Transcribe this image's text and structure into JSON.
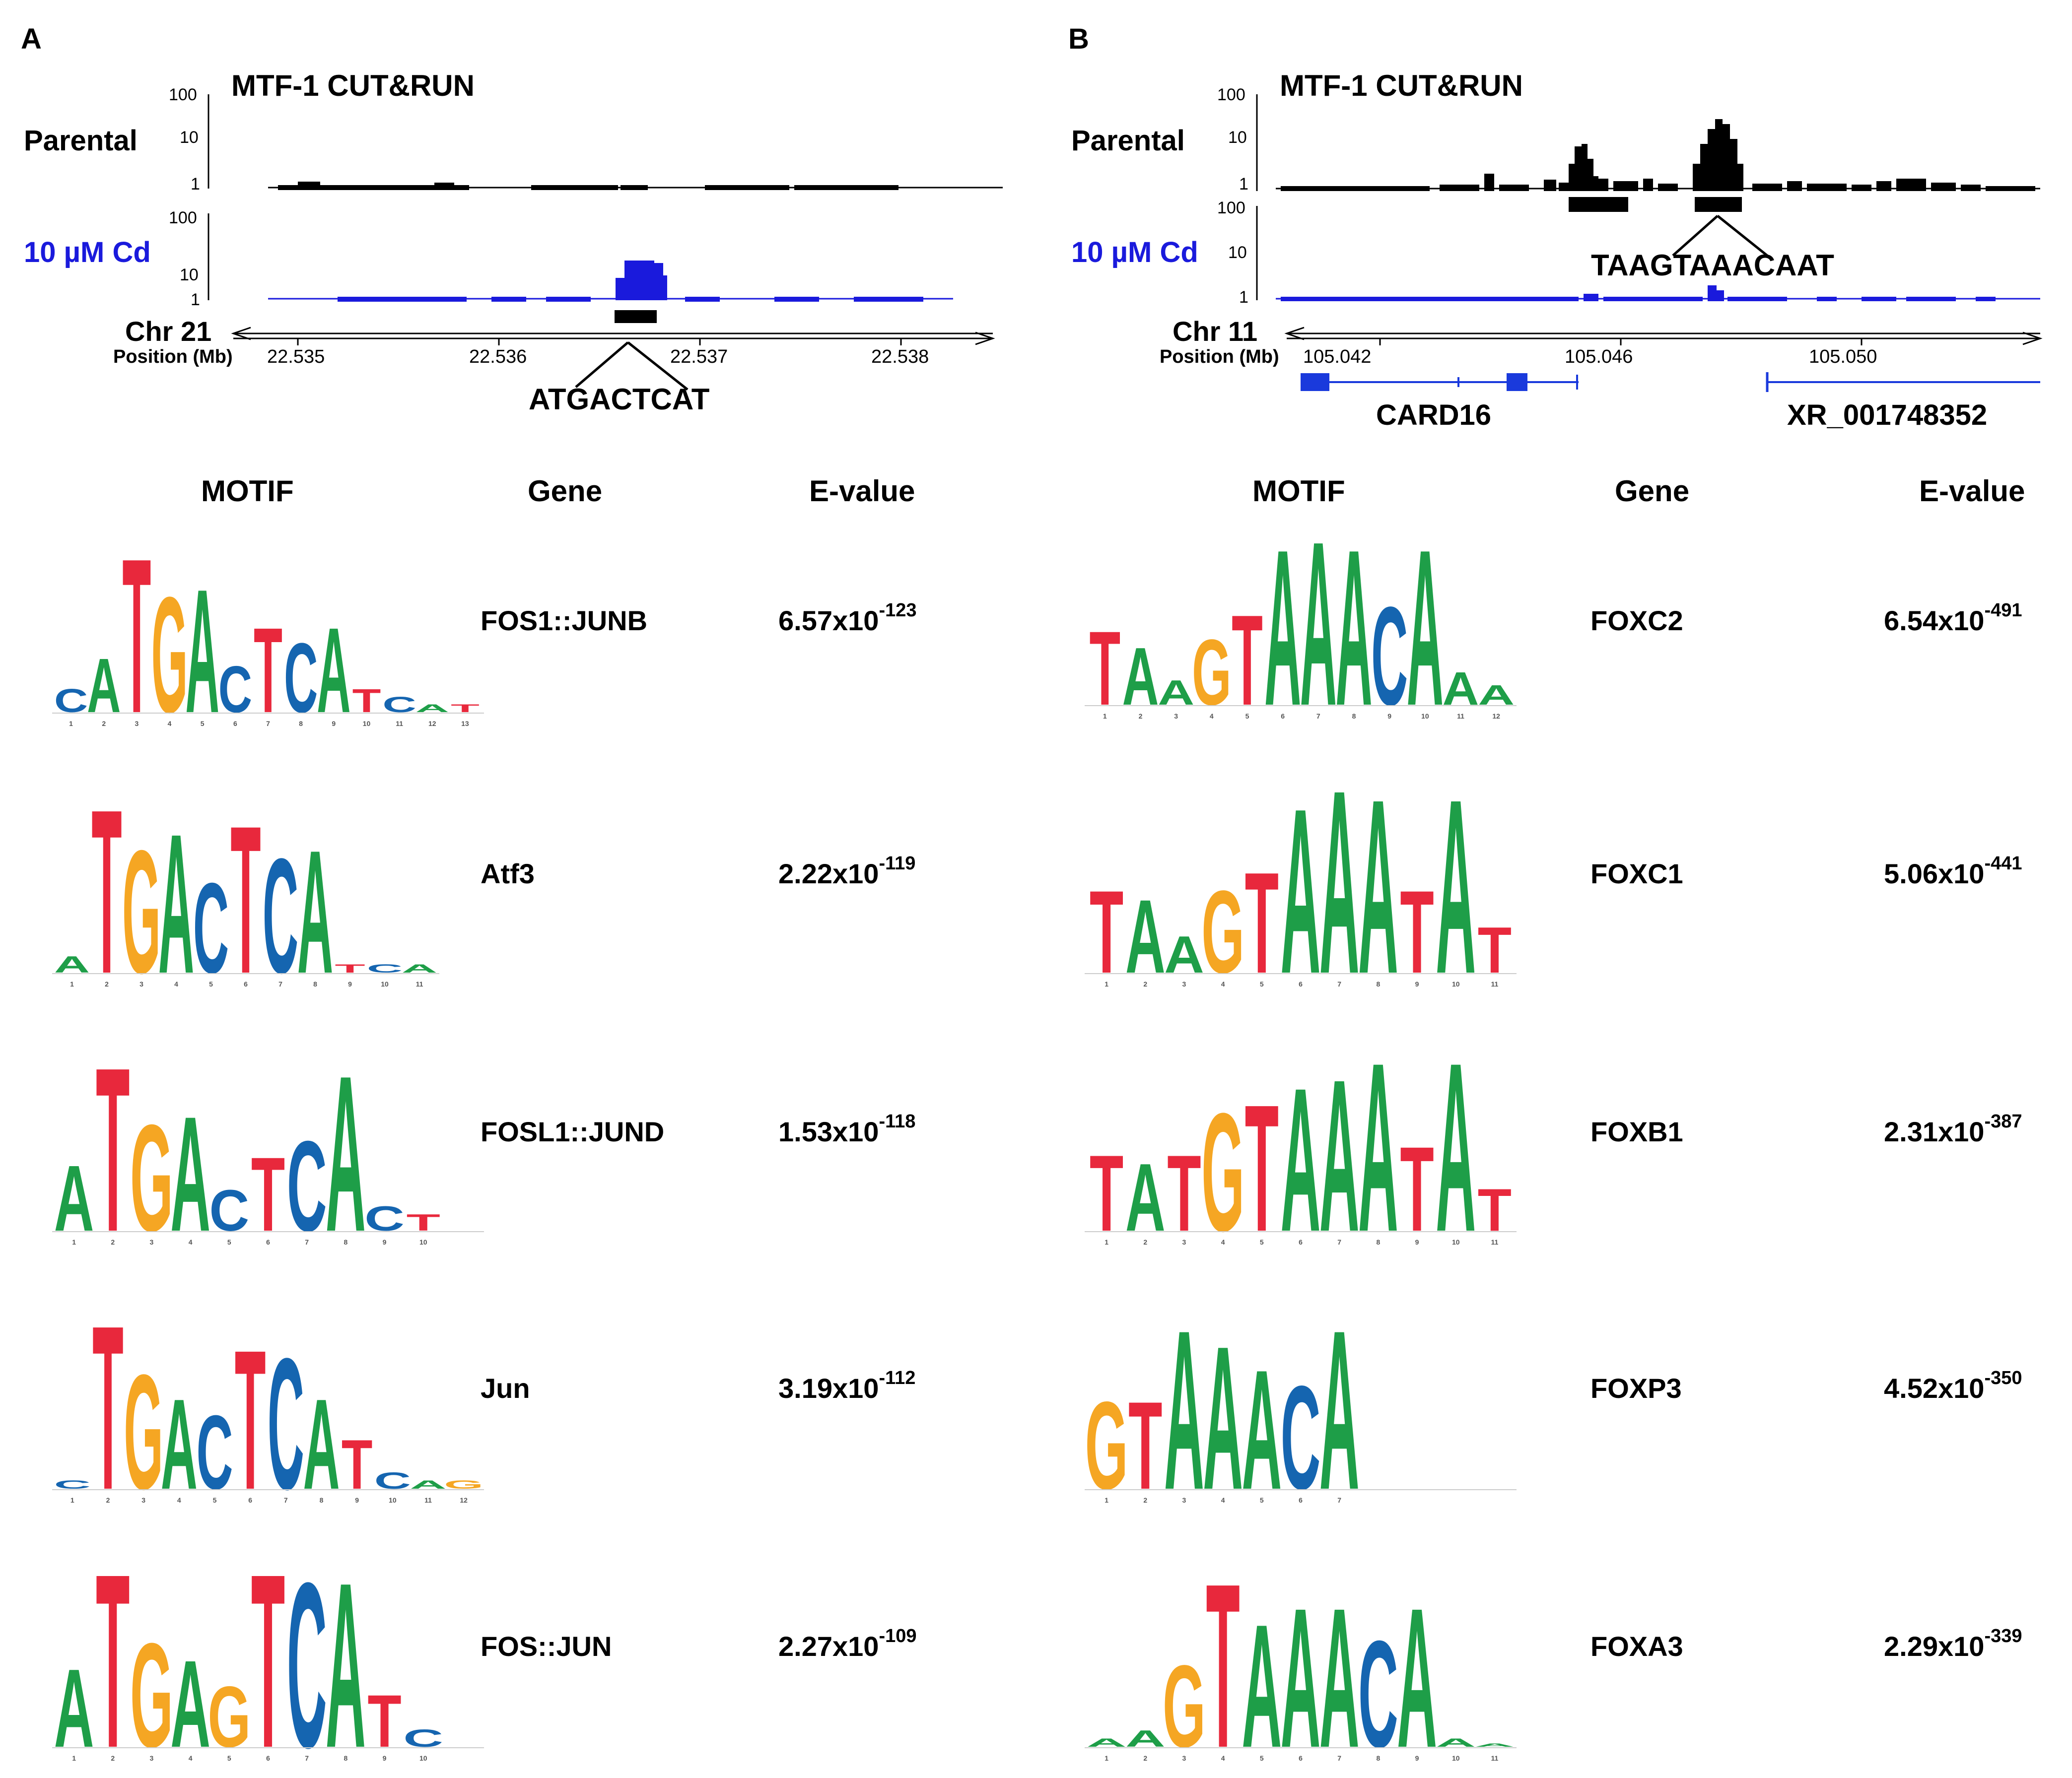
{
  "colors": {
    "parental_track": "#000000",
    "cd_track": "#1a1adc",
    "gene_model": "#1a3adc",
    "base_A": "#1e9e48",
    "base_C": "#1565b0",
    "base_G": "#f5a623",
    "base_T": "#e8283c"
  },
  "panelA": {
    "letter": "A",
    "title": "MTF-1 CUT&RUN",
    "track1_label": "Parental",
    "track2_label": "10 µM Cd",
    "yticks": [
      "100",
      "10",
      "1"
    ],
    "chrom": "Chr 21",
    "position_label": "Position (Mb)",
    "positions": [
      "22.535",
      "22.536",
      "22.537",
      "22.538"
    ],
    "peak_sequence": "ATGACTCAT",
    "table": {
      "col_motif": "MOTIF",
      "col_gene": "Gene",
      "col_evalue": "E-value",
      "rows": [
        {
          "gene": "FOS1::JUNB",
          "mantissa": "6.57x10",
          "exponent": "-123"
        },
        {
          "gene": "Atf3",
          "mantissa": "2.22x10",
          "exponent": "-119"
        },
        {
          "gene": "FOSL1::JUND",
          "mantissa": "1.53x10",
          "exponent": "-118"
        },
        {
          "gene": "Jun",
          "mantissa": "3.19x10",
          "exponent": "-112"
        },
        {
          "gene": "FOS::JUN",
          "mantissa": "2.27x10",
          "exponent": "-109"
        }
      ]
    }
  },
  "panelB": {
    "letter": "B",
    "title": "MTF-1 CUT&RUN",
    "track1_label": "Parental",
    "track2_label": "10 µM Cd",
    "yticks": [
      "100",
      "10",
      "1"
    ],
    "chrom": "Chr 11",
    "position_label": "Position (Mb)",
    "positions": [
      "105.042",
      "105.046",
      "105.050"
    ],
    "peak_sequence": "TAAGTAAACAAT",
    "genes": [
      "CARD16",
      "XR_001748352"
    ],
    "table": {
      "col_motif": "MOTIF",
      "col_gene": "Gene",
      "col_evalue": "E-value",
      "rows": [
        {
          "gene": "FOXC2",
          "mantissa": "6.54x10",
          "exponent": "-491"
        },
        {
          "gene": "FOXC1",
          "mantissa": "5.06x10",
          "exponent": "-441"
        },
        {
          "gene": "FOXB1",
          "mantissa": "2.31x10",
          "exponent": "-387"
        },
        {
          "gene": "FOXP3",
          "mantissa": "4.52x10",
          "exponent": "-350"
        },
        {
          "gene": "FOXA3",
          "mantissa": "2.29x10",
          "exponent": "-339"
        }
      ]
    }
  },
  "logos": {
    "FOS1::JUNB": [
      [
        "C",
        0.15
      ],
      [
        "A",
        0.35
      ],
      [
        "T",
        1.0
      ],
      [
        "G",
        0.75
      ],
      [
        "A",
        0.8
      ],
      [
        "C",
        0.3
      ],
      [
        "T",
        0.55
      ],
      [
        "C",
        0.45
      ],
      [
        "A",
        0.55
      ],
      [
        "T",
        0.15
      ],
      [
        "C",
        0.1
      ],
      [
        "A",
        0.05
      ],
      [
        "T",
        0.05
      ]
    ],
    "Atf3": [
      [
        "A",
        0.1
      ],
      [
        "T",
        1.0
      ],
      [
        "G",
        0.75
      ],
      [
        "A",
        0.85
      ],
      [
        "C",
        0.55
      ],
      [
        "T",
        0.9
      ],
      [
        "C",
        0.7
      ],
      [
        "A",
        0.75
      ],
      [
        "T",
        0.05
      ],
      [
        "C",
        0.05
      ],
      [
        "A",
        0.05
      ]
    ],
    "FOSL1::JUND": [
      [
        "A",
        0.4
      ],
      [
        "T",
        1.0
      ],
      [
        "G",
        0.65
      ],
      [
        "A",
        0.7
      ],
      [
        "C",
        0.25
      ],
      [
        "T",
        0.45
      ],
      [
        "C",
        0.55
      ],
      [
        "A",
        0.95
      ],
      [
        "C",
        0.15
      ],
      [
        "T",
        0.1
      ]
    ],
    "Jun": [
      [
        "C",
        0.05
      ],
      [
        "T",
        1.0
      ],
      [
        "G",
        0.7
      ],
      [
        "A",
        0.55
      ],
      [
        "C",
        0.45
      ],
      [
        "T",
        0.85
      ],
      [
        "C",
        0.8
      ],
      [
        "A",
        0.55
      ],
      [
        "T",
        0.3
      ],
      [
        "C",
        0.1
      ],
      [
        "A",
        0.05
      ],
      [
        "G",
        0.05
      ]
    ],
    "FOS::JUN": [
      [
        "A",
        0.45
      ],
      [
        "T",
        1.0
      ],
      [
        "G",
        0.6
      ],
      [
        "A",
        0.5
      ],
      [
        "G",
        0.35
      ],
      [
        "T",
        1.0
      ],
      [
        "C",
        0.95
      ],
      [
        "A",
        0.95
      ],
      [
        "T",
        0.3
      ],
      [
        "C",
        0.1
      ]
    ],
    "FOXC2": [
      [
        "T",
        0.45
      ],
      [
        "A",
        0.35
      ],
      [
        "A",
        0.15
      ],
      [
        "G",
        0.4
      ],
      [
        "T",
        0.55
      ],
      [
        "A",
        0.95
      ],
      [
        "A",
        1.0
      ],
      [
        "A",
        0.95
      ],
      [
        "C",
        0.6
      ],
      [
        "A",
        0.95
      ],
      [
        "A",
        0.2
      ],
      [
        "A",
        0.12
      ]
    ],
    "FOXC1": [
      [
        "T",
        0.45
      ],
      [
        "A",
        0.4
      ],
      [
        "A",
        0.2
      ],
      [
        "G",
        0.45
      ],
      [
        "T",
        0.55
      ],
      [
        "A",
        0.9
      ],
      [
        "A",
        1.0
      ],
      [
        "A",
        0.95
      ],
      [
        "T",
        0.45
      ],
      [
        "A",
        0.95
      ],
      [
        "T",
        0.25
      ]
    ],
    "FOXB1": [
      [
        "T",
        0.45
      ],
      [
        "A",
        0.4
      ],
      [
        "T",
        0.45
      ],
      [
        "G",
        0.7
      ],
      [
        "T",
        0.75
      ],
      [
        "A",
        0.85
      ],
      [
        "A",
        0.9
      ],
      [
        "A",
        1.0
      ],
      [
        "T",
        0.5
      ],
      [
        "A",
        1.0
      ],
      [
        "T",
        0.25
      ]
    ],
    "FOXP3": [
      [
        "G",
        0.55
      ],
      [
        "T",
        0.55
      ],
      [
        "A",
        1.0
      ],
      [
        "A",
        0.9
      ],
      [
        "A",
        0.75
      ],
      [
        "C",
        0.65
      ],
      [
        "A",
        1.0
      ]
    ],
    "FOXA3": [
      [
        "A",
        0.05
      ],
      [
        "A",
        0.1
      ],
      [
        "G",
        0.5
      ],
      [
        "T",
        1.0
      ],
      [
        "A",
        0.75
      ],
      [
        "A",
        0.85
      ],
      [
        "A",
        0.85
      ],
      [
        "C",
        0.65
      ],
      [
        "A",
        0.85
      ],
      [
        "A",
        0.05
      ],
      [
        "A",
        0.02
      ]
    ]
  }
}
